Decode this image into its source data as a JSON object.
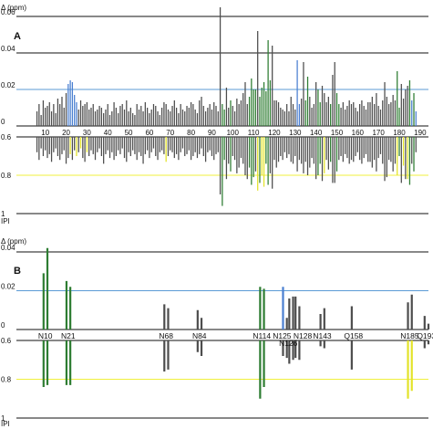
{
  "colors": {
    "gray": "#4d4d4d",
    "green": "#2e7d32",
    "blue": "#4a7fd1",
    "yellow": "#e3e32a",
    "blue_line": "#5b9bd5",
    "yellow_line": "#f0f03c",
    "axis": "#111111"
  },
  "chart_data": [
    {
      "type": "bar",
      "panel": "A",
      "ylabel_top": "Δ (ppm)",
      "ylabel_bottom": "IPI",
      "top": {
        "ylim": [
          0,
          0.06
        ],
        "yticks": [
          0,
          0.02,
          0.04,
          0.06
        ],
        "ytick_labels": [
          "0",
          "0.02",
          "0.04",
          "0.06"
        ],
        "threshold": 0.02
      },
      "bottom": {
        "ylim": [
          0.6,
          1
        ],
        "yticks": [
          0.6,
          0.8,
          1
        ],
        "ytick_labels": [
          "0.6",
          "0.8",
          "1"
        ],
        "threshold": 0.8
      },
      "xlim": [
        4,
        194
      ],
      "xticks": [
        10,
        20,
        30,
        40,
        50,
        60,
        70,
        80,
        90,
        100,
        110,
        120,
        130,
        140,
        150,
        160,
        170,
        180,
        190
      ],
      "x_start": 6,
      "top_values": [
        0.008,
        0.012,
        0.006,
        0.014,
        0.01,
        0.011,
        0.013,
        0.008,
        0.012,
        0.007,
        0.015,
        0.012,
        0.016,
        0.01,
        0.018,
        0.023,
        0.025,
        0.024,
        0.017,
        0.013,
        0.009,
        0.014,
        0.011,
        0.012,
        0.013,
        0.009,
        0.01,
        0.012,
        0.008,
        0.009,
        0.011,
        0.01,
        0.007,
        0.009,
        0.012,
        0.006,
        0.008,
        0.013,
        0.01,
        0.007,
        0.011,
        0.012,
        0.009,
        0.014,
        0.008,
        0.01,
        0.007,
        0.006,
        0.012,
        0.009,
        0.011,
        0.008,
        0.013,
        0.01,
        0.007,
        0.009,
        0.012,
        0.011,
        0.008,
        0.006,
        0.01,
        0.013,
        0.012,
        0.009,
        0.008,
        0.011,
        0.014,
        0.01,
        0.007,
        0.012,
        0.009,
        0.008,
        0.011,
        0.01,
        0.013,
        0.012,
        0.009,
        0.007,
        0.014,
        0.016,
        0.011,
        0.008,
        0.01,
        0.012,
        0.009,
        0.013,
        0.011,
        0.008,
        0.065,
        0.012,
        0.009,
        0.021,
        0.01,
        0.014,
        0.011,
        0.008,
        0.015,
        0.012,
        0.014,
        0.018,
        0.024,
        0.012,
        0.016,
        0.026,
        0.02,
        0.02,
        0.052,
        0.016,
        0.021,
        0.024,
        0.019,
        0.047,
        0.025,
        0.044,
        0.014,
        0.014,
        0.013,
        0.01,
        0.009,
        0.008,
        0.012,
        0.008,
        0.016,
        0.012,
        0.009,
        0.036,
        0.012,
        0.015,
        0.035,
        0.014,
        0.027,
        0.016,
        0.01,
        0.012,
        0.024,
        0.02,
        0.013,
        0.022,
        0.018,
        0.013,
        0.016,
        0.012,
        0.028,
        0.035,
        0.018,
        0.012,
        0.01,
        0.013,
        0.009,
        0.011,
        0.014,
        0.012,
        0.013,
        0.01,
        0.008,
        0.012,
        0.014,
        0.011,
        0.009,
        0.013,
        0.013,
        0.016,
        0.012,
        0.018,
        0.011,
        0.009,
        0.014,
        0.024,
        0.016,
        0.012,
        0.013,
        0.017,
        0.014,
        0.03,
        0.01,
        0.023,
        0.015,
        0.02,
        0.022,
        0.025,
        0.014,
        0.018,
        0.008
      ],
      "top_colors": {
        "green": [
          95,
          96,
          99,
          108,
          109,
          110,
          111,
          113,
          114,
          115,
          116,
          117,
          118,
          135,
          136,
          141,
          142,
          147,
          150,
          151,
          179,
          180,
          185,
          187,
          189,
          192
        ],
        "blue": [
          21,
          22,
          23,
          24,
          25,
          111,
          131,
          132,
          135,
          186,
          188,
          190,
          191
        ]
      },
      "bottom_values": [
        0.68,
        0.72,
        0.66,
        0.7,
        0.67,
        0.71,
        0.69,
        0.73,
        0.68,
        0.66,
        0.7,
        0.72,
        0.69,
        0.67,
        0.74,
        0.71,
        0.69,
        0.72,
        0.67,
        0.7,
        0.68,
        0.66,
        0.71,
        0.73,
        0.68,
        0.7,
        0.67,
        0.69,
        0.72,
        0.68,
        0.66,
        0.7,
        0.74,
        0.69,
        0.67,
        0.71,
        0.68,
        0.72,
        0.7,
        0.67,
        0.69,
        0.66,
        0.71,
        0.73,
        0.68,
        0.7,
        0.67,
        0.69,
        0.72,
        0.68,
        0.7,
        0.74,
        0.69,
        0.67,
        0.71,
        0.68,
        0.66,
        0.7,
        0.72,
        0.68,
        0.67,
        0.69,
        0.73,
        0.7,
        0.67,
        0.68,
        0.71,
        0.69,
        0.72,
        0.68,
        0.66,
        0.7,
        0.69,
        0.67,
        0.72,
        0.7,
        0.68,
        0.71,
        0.69,
        0.66,
        0.7,
        0.73,
        0.68,
        0.67,
        0.7,
        0.72,
        0.69,
        0.68,
        0.9,
        0.96,
        0.72,
        0.82,
        0.74,
        0.78,
        0.7,
        0.72,
        0.79,
        0.76,
        0.71,
        0.74,
        0.8,
        0.82,
        0.76,
        0.85,
        0.81,
        0.78,
        0.88,
        0.84,
        0.8,
        0.86,
        0.74,
        0.85,
        0.79,
        0.87,
        0.72,
        0.76,
        0.73,
        0.7,
        0.72,
        0.68,
        0.71,
        0.69,
        0.73,
        0.74,
        0.7,
        0.78,
        0.72,
        0.74,
        0.79,
        0.73,
        0.8,
        0.76,
        0.71,
        0.74,
        0.82,
        0.8,
        0.74,
        0.83,
        0.79,
        0.72,
        0.77,
        0.73,
        0.84,
        0.84,
        0.78,
        0.72,
        0.7,
        0.73,
        0.69,
        0.71,
        0.74,
        0.72,
        0.73,
        0.7,
        0.68,
        0.72,
        0.74,
        0.71,
        0.69,
        0.73,
        0.73,
        0.76,
        0.72,
        0.78,
        0.71,
        0.69,
        0.74,
        0.83,
        0.81,
        0.72,
        0.73,
        0.78,
        0.74,
        0.8,
        0.7,
        0.84,
        0.75,
        0.82,
        0.82,
        0.85,
        0.74,
        0.78,
        0.68
      ],
      "bottom_colors": {
        "green": [
          95,
          96,
          99,
          108,
          109,
          110,
          113,
          116,
          117,
          141,
          142,
          147,
          150,
          180,
          185,
          187,
          192
        ],
        "yellow": [
          22,
          25,
          27,
          30,
          68,
          112,
          114,
          115,
          141,
          144,
          147,
          179,
          182,
          184
        ]
      }
    },
    {
      "type": "bar",
      "panel": "B",
      "ylabel_top": "Δ (ppm)",
      "ylabel_bottom": "IPI",
      "top": {
        "ylim": [
          0,
          0.04
        ],
        "yticks": [
          0,
          0.02,
          0.04
        ],
        "ytick_labels": [
          "0",
          "0.02",
          "0.04"
        ],
        "threshold": 0.02
      },
      "bottom": {
        "ylim": [
          0.6,
          1
        ],
        "yticks": [
          0.6,
          0.8,
          1
        ],
        "ytick_labels": [
          "0.6",
          "0.8",
          "1"
        ],
        "threshold": 0.8
      },
      "xlim": [
        4,
        194
      ],
      "residues": [
        {
          "label": "N10",
          "x": 10,
          "tops": [
            0.029,
            0.042
          ],
          "bottoms": [
            0.84,
            0.83
          ],
          "top_colors": [
            "green",
            "green"
          ],
          "bottom_colors": [
            "green",
            "green"
          ]
        },
        {
          "label": "N21",
          "x": 21,
          "tops": [
            0.025,
            0.022
          ],
          "bottoms": [
            0.83,
            0.83
          ],
          "top_colors": [
            "green",
            "green"
          ],
          "bottom_colors": [
            "green",
            "green"
          ]
        },
        {
          "label": "N68",
          "x": 68,
          "tops": [
            0.013,
            0.011
          ],
          "bottoms": [
            0.76,
            0.75
          ],
          "top_colors": [
            "gray",
            "gray"
          ],
          "bottom_colors": [
            "gray",
            "gray"
          ]
        },
        {
          "label": "N84",
          "x": 84,
          "tops": [
            0.01,
            0.006
          ],
          "bottoms": [
            0.66,
            0.68
          ],
          "top_colors": [
            "gray",
            "gray"
          ],
          "bottom_colors": [
            "gray",
            "gray"
          ]
        },
        {
          "label": "N114",
          "x": 114,
          "tops": [
            0.022,
            0.021
          ],
          "bottoms": [
            0.9,
            0.84
          ],
          "top_colors": [
            "green",
            "green"
          ],
          "bottom_colors": [
            "green",
            "green"
          ]
        },
        {
          "label": "N125",
          "x": 125,
          "tops": [
            0.022,
            0.006
          ],
          "bottoms": [
            0.68,
            0.69
          ],
          "top_colors": [
            "blue",
            "gray"
          ],
          "bottom_colors": [
            "gray",
            "gray"
          ]
        },
        {
          "label": "N126",
          "x": 128,
          "tops": [
            0.016,
            0.017
          ],
          "bottoms": [
            0.72,
            0.7
          ],
          "top_colors": [
            "gray",
            "gray"
          ],
          "bottom_colors": [
            "gray",
            "gray"
          ]
        },
        {
          "label": "N128",
          "x": 131,
          "tops": [
            0.017,
            0.012
          ],
          "bottoms": [
            0.69,
            0.7
          ],
          "top_colors": [
            "gray",
            "gray"
          ],
          "bottom_colors": [
            "gray",
            "gray"
          ]
        },
        {
          "label": "N143",
          "x": 143,
          "tops": [
            0.008,
            0.011
          ],
          "bottoms": [
            0.63,
            0.64
          ],
          "top_colors": [
            "gray",
            "gray"
          ],
          "bottom_colors": [
            "gray",
            "gray"
          ]
        },
        {
          "label": "Q158",
          "x": 158,
          "tops": [
            0.012,
            0.0
          ],
          "bottoms": [
            0.75,
            0.6
          ],
          "top_colors": [
            "gray",
            "gray"
          ],
          "bottom_colors": [
            "gray",
            "gray"
          ]
        },
        {
          "label": "N185",
          "x": 185,
          "tops": [
            0.014,
            0.018
          ],
          "bottoms": [
            0.9,
            0.86
          ],
          "top_colors": [
            "gray",
            "gray"
          ],
          "bottom_colors": [
            "yellow",
            "yellow"
          ]
        },
        {
          "label": "Q193",
          "x": 193,
          "tops": [
            0.007,
            0.003
          ],
          "bottoms": [
            0.64,
            0.62
          ],
          "top_colors": [
            "gray",
            "gray"
          ],
          "bottom_colors": [
            "gray",
            "gray"
          ]
        }
      ]
    }
  ]
}
